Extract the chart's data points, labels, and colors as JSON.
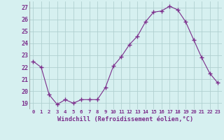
{
  "x": [
    0,
    1,
    2,
    3,
    4,
    5,
    6,
    7,
    8,
    9,
    10,
    11,
    12,
    13,
    14,
    15,
    16,
    17,
    18,
    19,
    20,
    21,
    22,
    23
  ],
  "y": [
    22.5,
    22.0,
    19.7,
    18.9,
    19.3,
    19.0,
    19.3,
    19.3,
    19.3,
    20.3,
    22.1,
    22.9,
    23.9,
    24.6,
    25.8,
    26.6,
    26.7,
    27.1,
    26.8,
    25.8,
    24.3,
    22.8,
    21.5,
    20.7
  ],
  "xlabel": "Windchill (Refroidissement éolien,°C)",
  "ylim": [
    18.5,
    27.5
  ],
  "xlim": [
    -0.5,
    23.5
  ],
  "yticks": [
    19,
    20,
    21,
    22,
    23,
    24,
    25,
    26,
    27
  ],
  "xticks": [
    0,
    1,
    2,
    3,
    4,
    5,
    6,
    7,
    8,
    9,
    10,
    11,
    12,
    13,
    14,
    15,
    16,
    17,
    18,
    19,
    20,
    21,
    22,
    23
  ],
  "line_color": "#7b2d8b",
  "marker": "+",
  "bg_color": "#d6f0f0",
  "grid_color": "#b0d0d0",
  "label_color": "#7b2d8b",
  "tick_color": "#7b2d8b"
}
